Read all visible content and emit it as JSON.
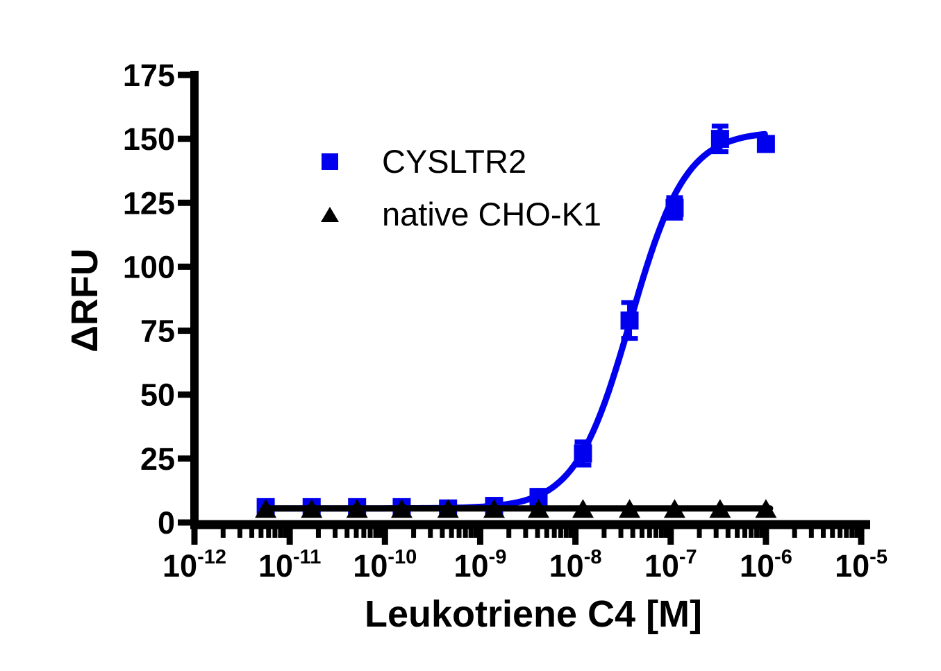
{
  "chart_data": {
    "type": "scatter",
    "title": "",
    "xlabel": "Leukotriene C4 [M]",
    "ylabel": "ΔRFU",
    "x_scale": "log10",
    "x_tick_exponents": [
      -12,
      -11,
      -10,
      -9,
      -8,
      -7,
      -6,
      -5
    ],
    "x_tick_mantissa": "10",
    "x_minor_tick_multiples": [
      2,
      3,
      4,
      5,
      6,
      7,
      8,
      9
    ],
    "xlim_log": [
      -12,
      -4.9
    ],
    "ylim": [
      0,
      175
    ],
    "yticks": [
      0,
      25,
      50,
      75,
      100,
      125,
      150,
      175
    ],
    "grid": false,
    "background_color": "#ffffff",
    "axis_color": "#000000",
    "legend_position": "inside-top-left",
    "series": [
      {
        "name": "CYSLTR2",
        "color": "#0000ee",
        "marker": "square",
        "x": [
          5.6e-12,
          1.7e-11,
          5.1e-11,
          1.5e-10,
          4.6e-10,
          1.4e-09,
          4.1e-09,
          1.2e-08,
          3.7e-08,
          1.1e-07,
          3.3e-07,
          1e-06
        ],
        "y": [
          6,
          6,
          6,
          6,
          5.5,
          6.5,
          10,
          27,
          79,
          123,
          150,
          148
        ],
        "y_err": [
          1,
          1,
          1,
          1,
          1,
          1,
          1.5,
          4.5,
          7,
          4,
          5,
          2
        ],
        "fit": {
          "model": "log-logistic",
          "bottom": 5.5,
          "top": 153,
          "log_ec50": -7.42,
          "hill_slope": 1.5
        }
      },
      {
        "name": "native CHO-K1",
        "color": "#000000",
        "marker": "triangle",
        "x": [
          5.6e-12,
          1.7e-11,
          5.1e-11,
          1.5e-10,
          4.6e-10,
          1.4e-09,
          4.1e-09,
          1.2e-08,
          3.7e-08,
          1.1e-07,
          3.3e-07,
          1e-06
        ],
        "y": [
          5.5,
          5.5,
          5.5,
          5.5,
          5.5,
          5.5,
          5.5,
          5.5,
          5.5,
          5.5,
          5.5,
          5.5
        ],
        "y_err": [
          0,
          0,
          0,
          0,
          0,
          0,
          0,
          0,
          0,
          0,
          0,
          0
        ],
        "fit": {
          "model": "constant",
          "value": 5.5
        }
      }
    ]
  }
}
